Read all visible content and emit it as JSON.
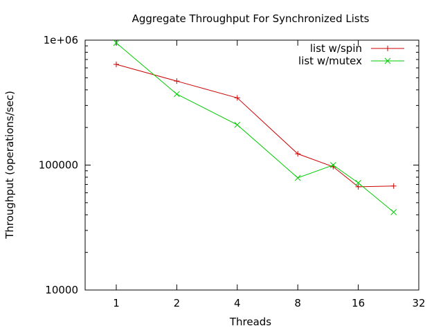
{
  "chart_data": {
    "type": "line",
    "title": "Aggregate Throughput For Synchronized Lists",
    "xlabel": "Threads",
    "ylabel": "Throughput (operations/sec)",
    "x_scale": "log2",
    "y_scale": "log10",
    "xlim": [
      0.7,
      32
    ],
    "ylim": [
      10000,
      1000000
    ],
    "x_ticks": [
      {
        "value": 1,
        "label": "1"
      },
      {
        "value": 2,
        "label": "2"
      },
      {
        "value": 4,
        "label": "4"
      },
      {
        "value": 8,
        "label": "8"
      },
      {
        "value": 16,
        "label": "16"
      },
      {
        "value": 32,
        "label": "32"
      }
    ],
    "y_ticks": [
      {
        "value": 10000,
        "label": "10000"
      },
      {
        "value": 100000,
        "label": "100000"
      },
      {
        "value": 1000000,
        "label": "1e+06"
      }
    ],
    "grid": false,
    "legend_position": "top-right",
    "series": [
      {
        "name": "list w/spin",
        "color": "#cc0000",
        "marker": "plus",
        "x": [
          1,
          2,
          4,
          8,
          12,
          16,
          24
        ],
        "y": [
          640000,
          470000,
          345000,
          123000,
          97000,
          67000,
          68000
        ]
      },
      {
        "name": "list w/mutex",
        "color": "#00cc00",
        "marker": "cross",
        "x": [
          1,
          2,
          4,
          8,
          12,
          16,
          24
        ],
        "y": [
          950000,
          370000,
          210000,
          79000,
          100000,
          72000,
          42000
        ]
      }
    ]
  }
}
